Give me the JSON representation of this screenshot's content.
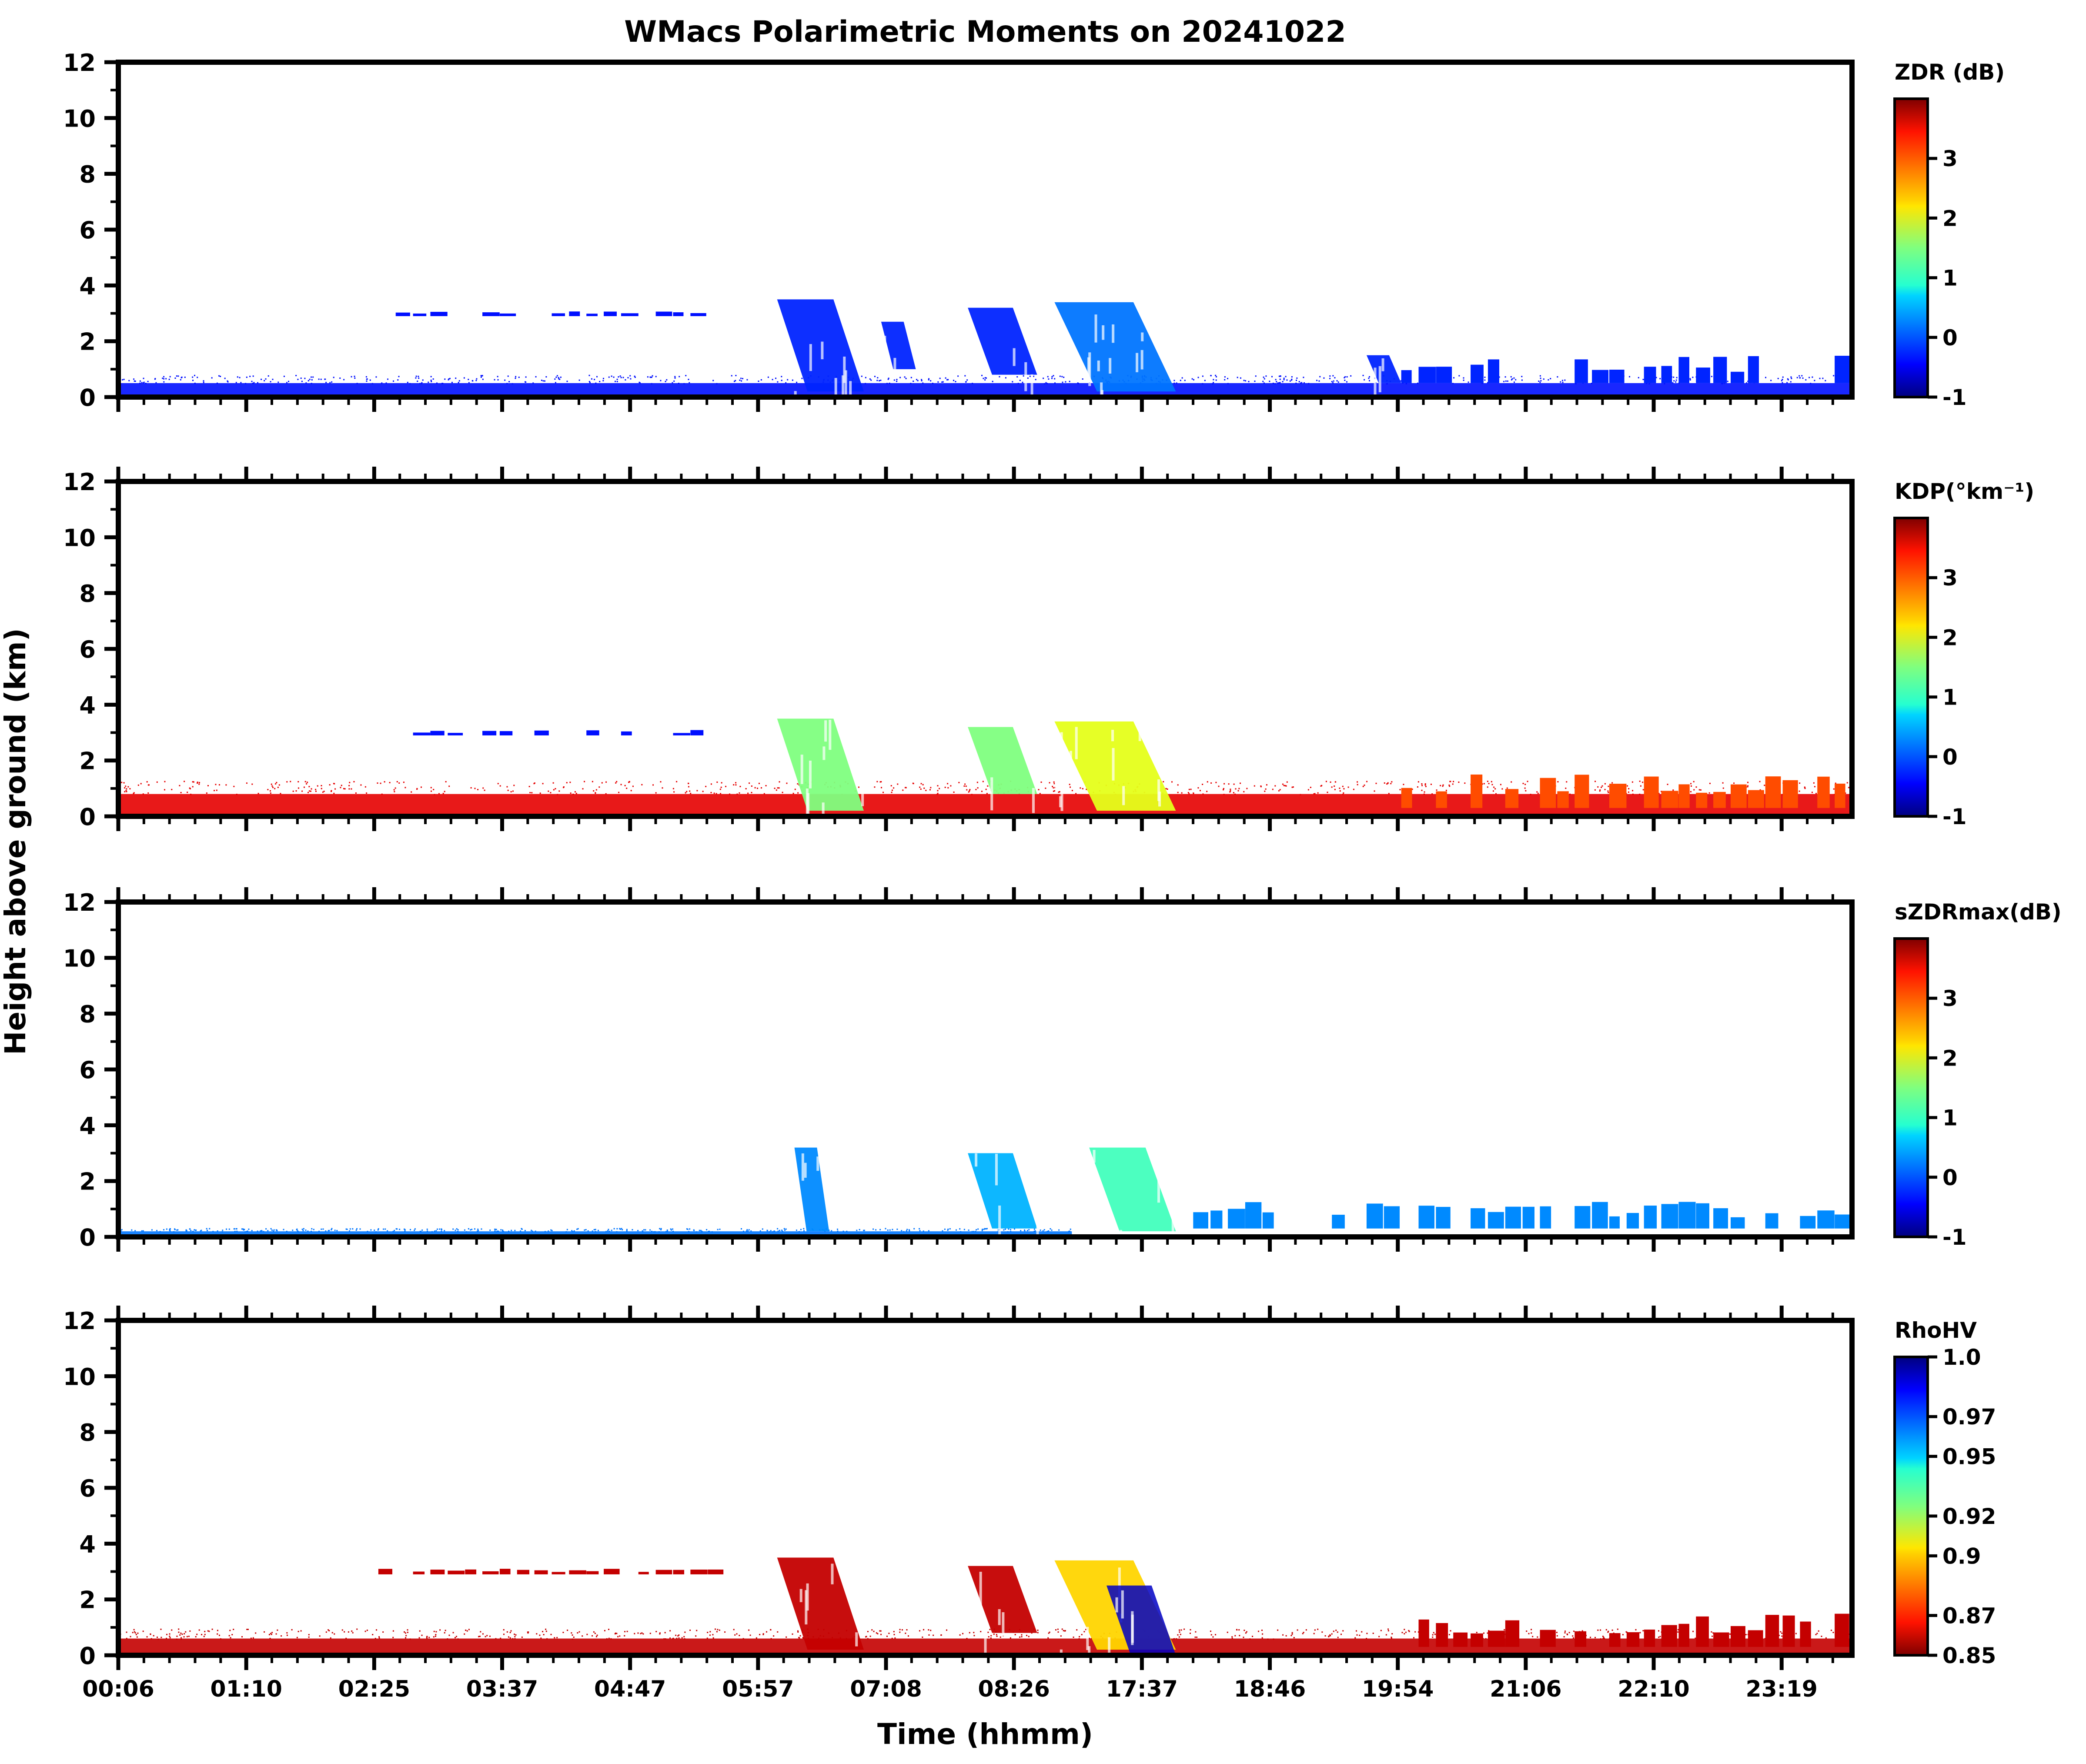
{
  "title": "WMacs Polarimetric Moments on 20241022",
  "ylabel": "Height above ground (km)",
  "xlabel": "Time (hhmm)",
  "chart_data": [
    {
      "type": "heatmap",
      "panel": "ZDR",
      "colorbar_label": "ZDR (dB)",
      "colorbar_range": [
        -1,
        4
      ],
      "colorbar_ticks": [
        "-1",
        "0",
        "1",
        "2",
        "3"
      ],
      "colormap": "jet",
      "y_ticks": [
        "0",
        "2",
        "4",
        "6",
        "8",
        "10",
        "12"
      ],
      "ylim": [
        0,
        12
      ],
      "x_ticks": [
        "00:06",
        "01:10",
        "02:25",
        "03:37",
        "04:47",
        "05:57",
        "07:08",
        "08:26",
        "17:37",
        "18:46",
        "19:54",
        "21:06",
        "22:10",
        "23:19"
      ],
      "features": [
        {
          "kind": "surface_layer",
          "t0": 0.0,
          "t1": 1.0,
          "h0": 0.0,
          "h1": 0.5,
          "value": -0.3
        },
        {
          "kind": "layer",
          "t0": 0.15,
          "t1": 0.35,
          "h0": 2.9,
          "h1": 3.1,
          "value": -0.3
        },
        {
          "kind": "cloud",
          "t0": 0.38,
          "t1": 0.43,
          "h0": 0.2,
          "h1": 3.5,
          "value": -0.2
        },
        {
          "kind": "cloud",
          "t0": 0.44,
          "t1": 0.46,
          "h0": 1.0,
          "h1": 2.7,
          "value": -0.2
        },
        {
          "kind": "cloud",
          "t0": 0.49,
          "t1": 0.53,
          "h0": 0.8,
          "h1": 3.2,
          "value": -0.2
        },
        {
          "kind": "cloud",
          "t0": 0.54,
          "t1": 0.61,
          "h0": 0.2,
          "h1": 3.4,
          "value": 0.2
        },
        {
          "kind": "cloud",
          "t0": 0.72,
          "t1": 0.74,
          "h0": 0.5,
          "h1": 1.5,
          "value": -0.2
        },
        {
          "kind": "layer",
          "t0": 0.74,
          "t1": 1.0,
          "h0": 0.5,
          "h1": 1.5,
          "value": -0.2
        }
      ]
    },
    {
      "type": "heatmap",
      "panel": "KDP",
      "colorbar_label": "KDP(°km⁻¹)",
      "colorbar_range": [
        -1,
        4
      ],
      "colorbar_ticks": [
        "-1",
        "0",
        "1",
        "2",
        "3"
      ],
      "colormap": "jet",
      "y_ticks": [
        "0",
        "2",
        "4",
        "6",
        "8",
        "10",
        "12"
      ],
      "ylim": [
        0,
        12
      ],
      "x_ticks": [
        "00:06",
        "01:10",
        "02:25",
        "03:37",
        "04:47",
        "05:57",
        "07:08",
        "08:26",
        "17:37",
        "18:46",
        "19:54",
        "21:06",
        "22:10",
        "23:19"
      ],
      "features": [
        {
          "kind": "surface_layer",
          "t0": 0.0,
          "t1": 1.0,
          "h0": 0.0,
          "h1": 0.8,
          "value": 3.5
        },
        {
          "kind": "layer",
          "t0": 0.17,
          "t1": 0.36,
          "h0": 2.9,
          "h1": 3.1,
          "value": -0.3
        },
        {
          "kind": "cloud",
          "t0": 0.38,
          "t1": 0.43,
          "h0": 0.2,
          "h1": 3.5,
          "value": 1.5
        },
        {
          "kind": "cloud",
          "t0": 0.49,
          "t1": 0.53,
          "h0": 0.8,
          "h1": 3.2,
          "value": 1.5
        },
        {
          "kind": "cloud",
          "t0": 0.54,
          "t1": 0.61,
          "h0": 0.2,
          "h1": 3.4,
          "value": 2.0
        },
        {
          "kind": "layer",
          "t0": 0.74,
          "t1": 1.0,
          "h0": 0.3,
          "h1": 1.5,
          "value": 3.0
        }
      ]
    },
    {
      "type": "heatmap",
      "panel": "sZDRmax",
      "colorbar_label": "sZDRmax(dB)",
      "colorbar_range": [
        -1,
        4
      ],
      "colorbar_ticks": [
        "-1",
        "0",
        "1",
        "2",
        "3"
      ],
      "colormap": "jet",
      "y_ticks": [
        "0",
        "2",
        "4",
        "6",
        "8",
        "10",
        "12"
      ],
      "ylim": [
        0,
        12
      ],
      "x_ticks": [
        "00:06",
        "01:10",
        "02:25",
        "03:37",
        "04:47",
        "05:57",
        "07:08",
        "08:26",
        "17:37",
        "18:46",
        "19:54",
        "21:06",
        "22:10",
        "23:19"
      ],
      "features": [
        {
          "kind": "surface_layer",
          "t0": 0.0,
          "t1": 0.55,
          "h0": 0.0,
          "h1": 0.2,
          "value": 0.2
        },
        {
          "kind": "cloud",
          "t0": 0.39,
          "t1": 0.41,
          "h0": 0.2,
          "h1": 3.2,
          "value": 0.3
        },
        {
          "kind": "cloud",
          "t0": 0.49,
          "t1": 0.53,
          "h0": 0.3,
          "h1": 3.0,
          "value": 0.5
        },
        {
          "kind": "cloud",
          "t0": 0.56,
          "t1": 0.61,
          "h0": 0.2,
          "h1": 3.2,
          "value": 1.2
        },
        {
          "kind": "layer",
          "t0": 0.62,
          "t1": 1.0,
          "h0": 0.3,
          "h1": 1.3,
          "value": 0.3
        }
      ]
    },
    {
      "type": "heatmap",
      "panel": "RhoHV",
      "colorbar_label": "RhoHV",
      "colorbar_range": [
        0.85,
        1.0
      ],
      "colorbar_ticks": [
        "0.85",
        "0.87",
        "0.9",
        "0.92",
        "0.95",
        "0.97",
        "1.0"
      ],
      "colormap": "jet_r",
      "y_ticks": [
        "0",
        "2",
        "4",
        "6",
        "8",
        "10",
        "12"
      ],
      "ylim": [
        0,
        12
      ],
      "x_ticks": [
        "00:06",
        "01:10",
        "02:25",
        "03:37",
        "04:47",
        "05:57",
        "07:08",
        "08:26",
        "17:37",
        "18:46",
        "19:54",
        "21:06",
        "22:10",
        "23:19"
      ],
      "features": [
        {
          "kind": "surface_layer",
          "t0": 0.0,
          "t1": 1.0,
          "h0": 0.0,
          "h1": 0.6,
          "value": 0.86
        },
        {
          "kind": "layer",
          "t0": 0.15,
          "t1": 0.35,
          "h0": 2.9,
          "h1": 3.1,
          "value": 0.86
        },
        {
          "kind": "cloud",
          "t0": 0.38,
          "t1": 0.43,
          "h0": 0.2,
          "h1": 3.5,
          "value": 0.86
        },
        {
          "kind": "cloud",
          "t0": 0.49,
          "t1": 0.53,
          "h0": 0.8,
          "h1": 3.2,
          "value": 0.86
        },
        {
          "kind": "cloud",
          "t0": 0.54,
          "t1": 0.61,
          "h0": 0.2,
          "h1": 3.4,
          "value": 0.9
        },
        {
          "kind": "patch",
          "t0": 0.57,
          "t1": 0.61,
          "h0": 0.0,
          "h1": 2.5,
          "value": 0.99
        },
        {
          "kind": "layer",
          "t0": 0.74,
          "t1": 1.0,
          "h0": 0.3,
          "h1": 1.5,
          "value": 0.86
        }
      ]
    }
  ]
}
